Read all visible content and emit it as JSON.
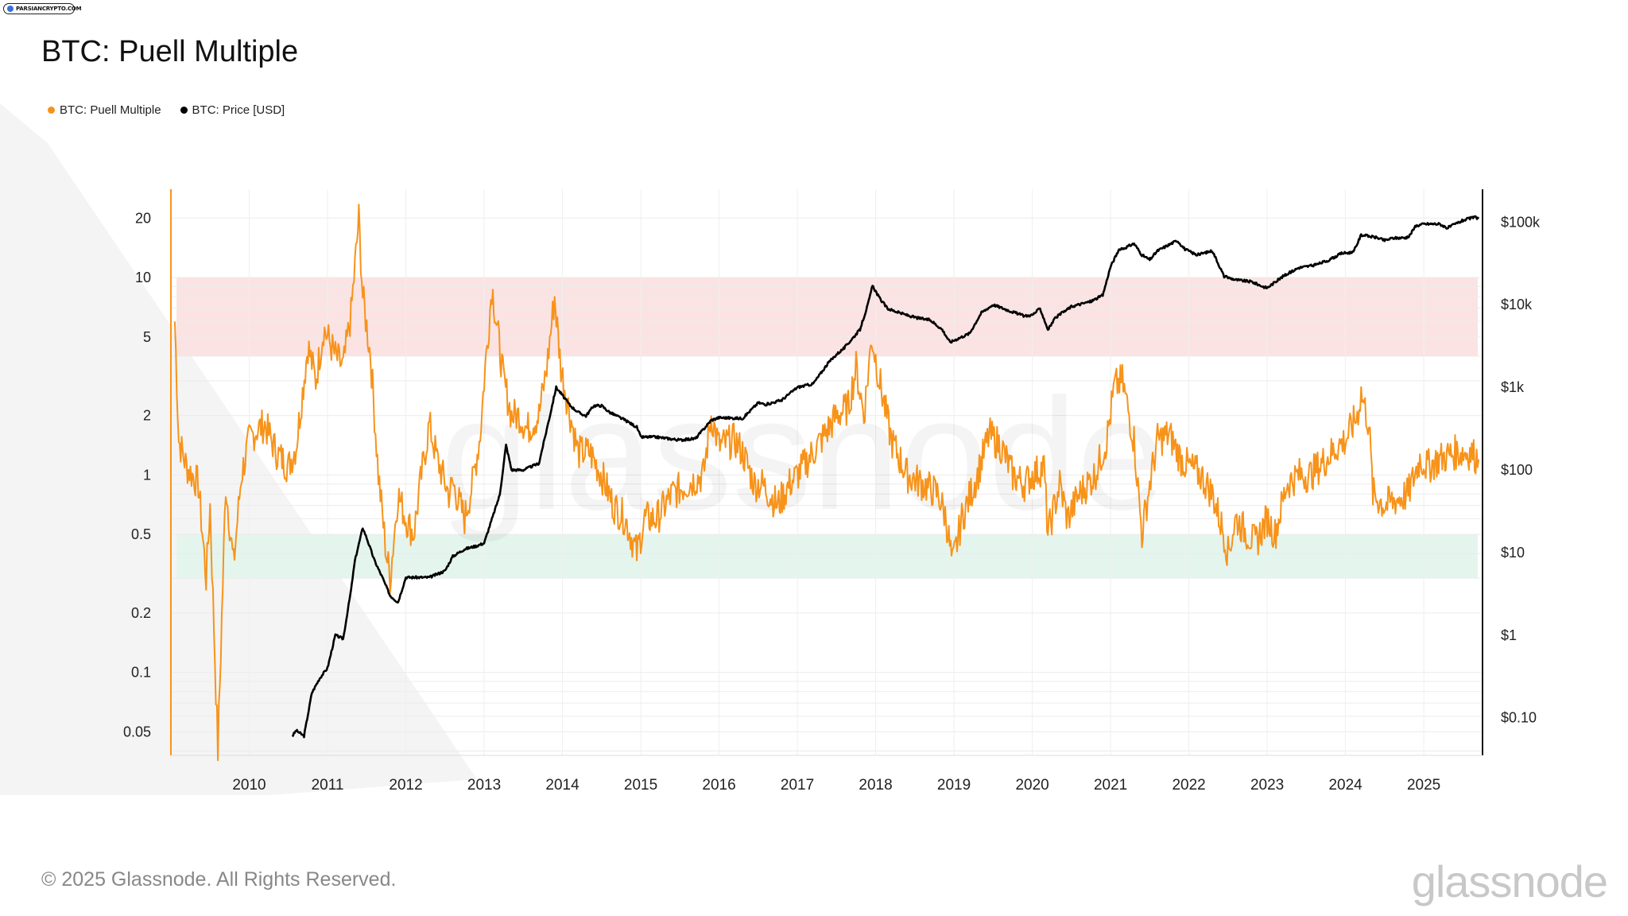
{
  "badge": {
    "text": "PARSIANCRYPTO.COM"
  },
  "title": "BTC: Puell Multiple",
  "legend": [
    {
      "label": "BTC: Puell Multiple",
      "color": "#f7931a"
    },
    {
      "label": "BTC: Price [USD]",
      "color": "#000000"
    }
  ],
  "footer": "© 2025 Glassnode. All Rights Reserved.",
  "watermark": "glassnode",
  "brand": "glassnode",
  "chart_data": {
    "type": "line",
    "title": "BTC: Puell Multiple",
    "x_range": [
      2009.0,
      2025.75
    ],
    "x_ticks": [
      "2010",
      "2011",
      "2012",
      "2013",
      "2014",
      "2015",
      "2016",
      "2017",
      "2018",
      "2019",
      "2020",
      "2021",
      "2022",
      "2023",
      "2024",
      "2025"
    ],
    "y_left": {
      "scale": "log",
      "range": [
        0.038,
        28
      ],
      "ticks": [
        {
          "v": 20,
          "label": "20"
        },
        {
          "v": 10,
          "label": "10"
        },
        {
          "v": 5,
          "label": "5"
        },
        {
          "v": 2,
          "label": "2"
        },
        {
          "v": 1,
          "label": "1"
        },
        {
          "v": 0.5,
          "label": "0.5"
        },
        {
          "v": 0.2,
          "label": "0.2"
        },
        {
          "v": 0.1,
          "label": "0.1"
        },
        {
          "v": 0.05,
          "label": "0.05"
        }
      ]
    },
    "y_right": {
      "scale": "log",
      "range": [
        0.035,
        250000
      ],
      "ticks": [
        {
          "v": 100000,
          "label": "$100k"
        },
        {
          "v": 10000,
          "label": "$10k"
        },
        {
          "v": 1000,
          "label": "$1k"
        },
        {
          "v": 100,
          "label": "$100"
        },
        {
          "v": 10,
          "label": "$10"
        },
        {
          "v": 1,
          "label": "$1"
        },
        {
          "v": 0.1,
          "label": "$0.10"
        }
      ]
    },
    "bands": [
      {
        "name": "overvalued",
        "from": 4,
        "to": 10,
        "color": "#fbe3e3"
      },
      {
        "name": "undervalued",
        "from": 0.3,
        "to": 0.5,
        "color": "#e4f5ee"
      }
    ],
    "series": [
      {
        "name": "BTC: Puell Multiple",
        "axis": "left",
        "color": "#f7931a",
        "x": [
          2009.05,
          2009.1,
          2009.2,
          2009.35,
          2009.45,
          2009.5,
          2009.6,
          2009.7,
          2009.8,
          2009.9,
          2010.0,
          2010.1,
          2010.2,
          2010.35,
          2010.5,
          2010.6,
          2010.75,
          2010.85,
          2010.95,
          2011.0,
          2011.1,
          2011.2,
          2011.3,
          2011.4,
          2011.45,
          2011.55,
          2011.65,
          2011.75,
          2011.8,
          2011.9,
          2012.0,
          2012.1,
          2012.2,
          2012.3,
          2012.4,
          2012.55,
          2012.6,
          2012.75,
          2012.85,
          2012.95,
          2013.0,
          2013.1,
          2013.25,
          2013.35,
          2013.45,
          2013.55,
          2013.7,
          2013.8,
          2013.9,
          2013.98,
          2014.1,
          2014.2,
          2014.35,
          2014.5,
          2014.65,
          2014.8,
          2014.95,
          2015.05,
          2015.2,
          2015.4,
          2015.6,
          2015.8,
          2015.9,
          2016.0,
          2016.2,
          2016.3,
          2016.45,
          2016.55,
          2016.75,
          2016.9,
          2017.0,
          2017.2,
          2017.35,
          2017.5,
          2017.65,
          2017.75,
          2017.85,
          2017.95,
          2018.05,
          2018.2,
          2018.4,
          2018.6,
          2018.8,
          2018.9,
          2018.98,
          2019.1,
          2019.3,
          2019.45,
          2019.6,
          2019.75,
          2019.9,
          2020.0,
          2020.15,
          2020.2,
          2020.35,
          2020.45,
          2020.6,
          2020.8,
          2020.95,
          2021.05,
          2021.15,
          2021.3,
          2021.4,
          2021.5,
          2021.6,
          2021.75,
          2021.9,
          2022.0,
          2022.15,
          2022.3,
          2022.45,
          2022.5,
          2022.6,
          2022.75,
          2022.85,
          2023.0,
          2023.1,
          2023.25,
          2023.4,
          2023.55,
          2023.75,
          2023.9,
          2024.0,
          2024.15,
          2024.2,
          2024.3,
          2024.35,
          2024.5,
          2024.65,
          2024.8,
          2024.95,
          2025.05,
          2025.2,
          2025.4,
          2025.6,
          2025.7
        ],
        "values": [
          6.0,
          1.5,
          1.1,
          0.9,
          0.3,
          0.7,
          0.04,
          0.9,
          0.35,
          1.0,
          1.5,
          1.7,
          1.8,
          1.3,
          1.1,
          1.4,
          4.5,
          3.0,
          5.5,
          5.0,
          4.0,
          3.5,
          6.5,
          20.0,
          8.0,
          4.0,
          1.0,
          0.4,
          0.3,
          0.8,
          0.6,
          0.5,
          1.0,
          1.8,
          1.2,
          0.8,
          0.9,
          0.6,
          0.9,
          1.6,
          3.0,
          9.0,
          3.0,
          2.0,
          2.0,
          1.7,
          2.0,
          3.5,
          8.0,
          3.5,
          2.0,
          1.3,
          1.3,
          1.0,
          0.7,
          0.6,
          0.4,
          0.6,
          0.6,
          0.8,
          0.9,
          1.0,
          2.0,
          1.4,
          1.5,
          1.3,
          0.9,
          0.9,
          0.7,
          0.9,
          1.0,
          1.3,
          1.6,
          2.0,
          2.2,
          3.5,
          2.0,
          5.0,
          3.0,
          1.5,
          1.0,
          0.9,
          0.8,
          0.6,
          0.35,
          0.6,
          1.0,
          1.6,
          1.4,
          1.0,
          0.9,
          1.0,
          1.1,
          0.5,
          0.9,
          0.6,
          0.8,
          1.0,
          1.5,
          2.8,
          3.0,
          1.5,
          0.5,
          0.9,
          1.5,
          1.6,
          1.2,
          1.1,
          1.0,
          0.8,
          0.5,
          0.4,
          0.6,
          0.5,
          0.45,
          0.6,
          0.5,
          0.9,
          1.0,
          1.0,
          1.2,
          1.4,
          1.5,
          2.0,
          2.6,
          1.8,
          0.8,
          0.7,
          0.75,
          0.8,
          1.2,
          1.1,
          1.2,
          1.3,
          1.3,
          1.2
        ]
      },
      {
        "name": "BTC: Price [USD]",
        "axis": "right",
        "color": "#000000",
        "x": [
          2010.55,
          2010.6,
          2010.7,
          2010.8,
          2010.9,
          2011.0,
          2011.1,
          2011.2,
          2011.3,
          2011.35,
          2011.45,
          2011.5,
          2011.6,
          2011.7,
          2011.8,
          2011.9,
          2012.0,
          2012.1,
          2012.3,
          2012.5,
          2012.6,
          2012.75,
          2012.9,
          2013.0,
          2013.2,
          2013.28,
          2013.35,
          2013.5,
          2013.7,
          2013.85,
          2013.92,
          2014.0,
          2014.1,
          2014.2,
          2014.3,
          2014.4,
          2014.5,
          2014.6,
          2014.8,
          2014.95,
          2015.0,
          2015.2,
          2015.5,
          2015.7,
          2015.9,
          2016.0,
          2016.3,
          2016.5,
          2016.6,
          2016.8,
          2017.0,
          2017.2,
          2017.4,
          2017.5,
          2017.6,
          2017.8,
          2017.9,
          2017.96,
          2018.05,
          2018.15,
          2018.3,
          2018.5,
          2018.7,
          2018.85,
          2018.95,
          2019.0,
          2019.2,
          2019.35,
          2019.5,
          2019.7,
          2019.9,
          2020.0,
          2020.1,
          2020.2,
          2020.3,
          2020.5,
          2020.75,
          2020.9,
          2021.0,
          2021.1,
          2021.3,
          2021.4,
          2021.5,
          2021.6,
          2021.85,
          2021.95,
          2022.1,
          2022.3,
          2022.45,
          2022.6,
          2022.8,
          2022.95,
          2023.0,
          2023.2,
          2023.4,
          2023.6,
          2023.8,
          2023.95,
          2024.1,
          2024.2,
          2024.4,
          2024.5,
          2024.6,
          2024.8,
          2024.9,
          2025.0,
          2025.2,
          2025.3,
          2025.5,
          2025.65,
          2025.7
        ],
        "values": [
          0.06,
          0.07,
          0.06,
          0.2,
          0.3,
          0.4,
          1.0,
          0.9,
          3.5,
          8,
          20,
          15,
          8,
          5,
          3,
          2.5,
          5,
          5,
          5,
          6,
          9,
          11,
          12,
          13,
          50,
          200,
          100,
          100,
          120,
          500,
          1000,
          800,
          600,
          500,
          450,
          600,
          600,
          500,
          400,
          330,
          250,
          250,
          230,
          240,
          400,
          430,
          420,
          650,
          620,
          700,
          1000,
          1100,
          2000,
          2500,
          3000,
          5000,
          10000,
          17000,
          12000,
          9000,
          8000,
          7000,
          6500,
          5000,
          3500,
          3700,
          4500,
          8000,
          10000,
          8500,
          7300,
          7500,
          9000,
          5000,
          7000,
          9500,
          11000,
          13000,
          29000,
          45000,
          55000,
          40000,
          35000,
          45000,
          60000,
          47000,
          40000,
          45000,
          22000,
          20000,
          19000,
          16500,
          16000,
          22000,
          28000,
          30000,
          35000,
          42000,
          43000,
          70000,
          65000,
          60000,
          64000,
          65000,
          90000,
          95000,
          95000,
          85000,
          105000,
          115000,
          110000
        ]
      }
    ]
  }
}
